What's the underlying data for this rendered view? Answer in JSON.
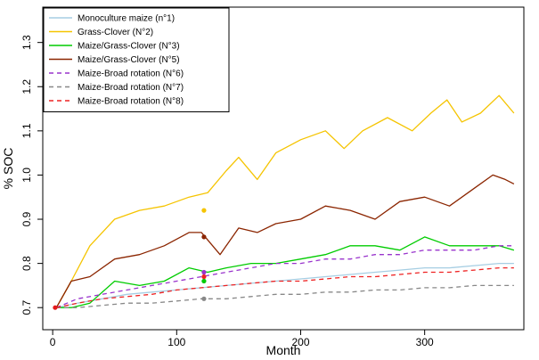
{
  "chart_data": {
    "type": "line",
    "title": "",
    "xlabel": "Month",
    "ylabel": "% SOC",
    "xlim": [
      -8,
      380
    ],
    "ylim": [
      0.65,
      1.38
    ],
    "xticks": [
      0,
      100,
      200,
      300
    ],
    "xtick_labels": [
      "0",
      "100",
      "200",
      "300"
    ],
    "yticks": [
      0.7,
      0.8,
      0.9,
      1.0,
      1.1,
      1.2,
      1.3
    ],
    "ytick_labels": [
      "0.7",
      "0.8",
      "0.9",
      "1.0",
      "1.1",
      "1.2",
      "1.3"
    ],
    "grid": false,
    "legend_position": "top-left",
    "observed_point_at_x0": {
      "x": 2,
      "y": 0.7,
      "color": "#e41a1c"
    },
    "series": [
      {
        "name": "Monoculture maize (n°1)",
        "color": "#a6cee3",
        "dash": "solid",
        "x": [
          3,
          20,
          40,
          60,
          80,
          100,
          120,
          140,
          160,
          180,
          200,
          220,
          240,
          260,
          280,
          300,
          320,
          340,
          360,
          372
        ],
        "y": [
          0.7,
          0.71,
          0.72,
          0.73,
          0.735,
          0.74,
          0.745,
          0.75,
          0.755,
          0.76,
          0.765,
          0.77,
          0.775,
          0.78,
          0.785,
          0.79,
          0.79,
          0.795,
          0.8,
          0.8
        ],
        "observed": {
          "x": 122,
          "y": 0.76
        }
      },
      {
        "name": "Grass-Clover (N°2)",
        "color": "#f5c400",
        "dash": "solid",
        "x": [
          3,
          15,
          30,
          50,
          70,
          90,
          110,
          125,
          140,
          150,
          165,
          180,
          200,
          220,
          235,
          250,
          270,
          290,
          305,
          318,
          330,
          345,
          360,
          372
        ],
        "y": [
          0.7,
          0.76,
          0.84,
          0.9,
          0.92,
          0.93,
          0.95,
          0.96,
          1.01,
          1.04,
          0.99,
          1.05,
          1.08,
          1.1,
          1.06,
          1.1,
          1.13,
          1.1,
          1.14,
          1.17,
          1.12,
          1.14,
          1.18,
          1.14
        ],
        "observed": {
          "x": 122,
          "y": 0.92
        }
      },
      {
        "name": "Maize/Grass-Clover (N°3)",
        "color": "#00cc00",
        "dash": "solid",
        "x": [
          3,
          15,
          30,
          50,
          70,
          90,
          110,
          125,
          140,
          160,
          180,
          200,
          220,
          240,
          260,
          280,
          300,
          320,
          340,
          360,
          372
        ],
        "y": [
          0.7,
          0.7,
          0.71,
          0.76,
          0.75,
          0.76,
          0.79,
          0.78,
          0.79,
          0.8,
          0.8,
          0.81,
          0.82,
          0.84,
          0.84,
          0.83,
          0.86,
          0.84,
          0.84,
          0.84,
          0.83
        ],
        "observed": {
          "x": 122,
          "y": 0.76
        }
      },
      {
        "name": "Maize/Grass-Clover (N°5)",
        "color": "#8b2500",
        "dash": "solid",
        "x": [
          3,
          15,
          30,
          50,
          70,
          90,
          110,
          120,
          135,
          150,
          165,
          180,
          200,
          220,
          240,
          260,
          280,
          300,
          320,
          340,
          355,
          365,
          372
        ],
        "y": [
          0.7,
          0.76,
          0.77,
          0.81,
          0.82,
          0.84,
          0.87,
          0.87,
          0.82,
          0.88,
          0.87,
          0.89,
          0.9,
          0.93,
          0.92,
          0.9,
          0.94,
          0.95,
          0.93,
          0.97,
          1.0,
          0.99,
          0.98
        ],
        "observed": {
          "x": 122,
          "y": 0.86
        }
      },
      {
        "name": "Maize-Broad rotation (N°6)",
        "color": "#9933cc",
        "dash": "dashed",
        "x": [
          3,
          20,
          40,
          60,
          80,
          100,
          120,
          140,
          160,
          180,
          200,
          220,
          240,
          260,
          280,
          300,
          320,
          340,
          360,
          372
        ],
        "y": [
          0.7,
          0.72,
          0.73,
          0.74,
          0.75,
          0.76,
          0.77,
          0.78,
          0.79,
          0.8,
          0.8,
          0.81,
          0.81,
          0.82,
          0.82,
          0.83,
          0.83,
          0.83,
          0.84,
          0.84
        ],
        "observed": {
          "x": 122,
          "y": 0.78
        }
      },
      {
        "name": "Maize-Broad rotation (N°7)",
        "color": "#888888",
        "dash": "dashed",
        "x": [
          3,
          20,
          40,
          60,
          80,
          100,
          120,
          140,
          160,
          180,
          200,
          220,
          240,
          260,
          280,
          300,
          320,
          340,
          360,
          372
        ],
        "y": [
          0.7,
          0.7,
          0.705,
          0.71,
          0.71,
          0.715,
          0.72,
          0.72,
          0.725,
          0.73,
          0.73,
          0.735,
          0.735,
          0.74,
          0.74,
          0.745,
          0.745,
          0.75,
          0.75,
          0.75
        ],
        "observed": {
          "x": 122,
          "y": 0.72
        }
      },
      {
        "name": "Maize-Broad rotation (N°8)",
        "color": "#ee2222",
        "dash": "dashed",
        "x": [
          3,
          20,
          40,
          60,
          80,
          100,
          120,
          140,
          160,
          180,
          200,
          220,
          240,
          260,
          280,
          300,
          320,
          340,
          360,
          372
        ],
        "y": [
          0.7,
          0.71,
          0.72,
          0.725,
          0.73,
          0.74,
          0.745,
          0.75,
          0.755,
          0.76,
          0.76,
          0.765,
          0.77,
          0.77,
          0.775,
          0.78,
          0.78,
          0.785,
          0.79,
          0.79
        ],
        "observed": {
          "x": 122,
          "y": 0.77
        }
      }
    ]
  }
}
